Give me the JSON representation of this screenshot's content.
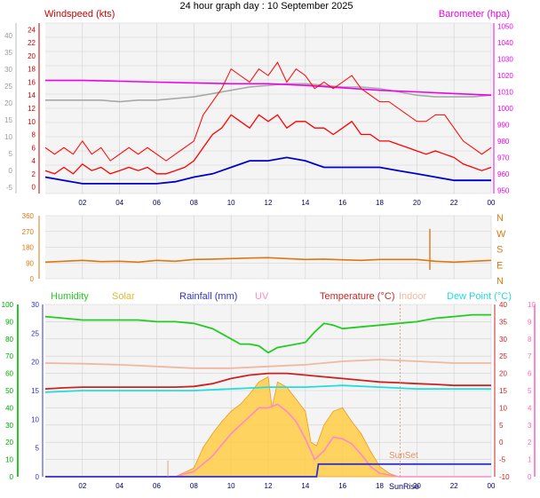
{
  "page_title": "24 hour graph day : 10 September 2025",
  "colors": {
    "plot_bg": "#f4f4f4",
    "grid": "#d0d0d0",
    "wind": "#ff0000",
    "gust_label": "#cc0000",
    "avg_wind": "#0000cc",
    "barometer": "#ee00ee",
    "bar_grey": "#a8a8a8",
    "direction": "#dd7711",
    "humidity": "#22cc22",
    "solar": "#ffcc44",
    "rain": "#3333cc",
    "uv": "#ff88cc",
    "temperature": "#cc2222",
    "indoor": "#f0b8a0",
    "dewpoint": "#22dddd",
    "x_ticks": "#000066",
    "green_axis": "#00aa00",
    "sunset": "#e09060"
  },
  "chart_data": [
    {
      "type": "line",
      "name": "wind-panel",
      "left_label": "Windspeed (kts)",
      "right_label": "Barometer (hpa)",
      "outer_axis_ticks": [
        "40",
        "35",
        "30",
        "25",
        "20",
        "15",
        "10",
        "5",
        "0",
        "-5"
      ],
      "wind_axis_ticks": [
        "24",
        "22",
        "20",
        "18",
        "16",
        "14",
        "12",
        "10",
        "8",
        "6",
        "4",
        "2",
        "0"
      ],
      "wind_ylim": [
        -1,
        25
      ],
      "baro_axis_ticks": [
        "1050",
        "1040",
        "1030",
        "1020",
        "1010",
        "1000",
        "990",
        "980",
        "970",
        "960",
        "950"
      ],
      "baro_ylim": [
        948,
        1052
      ],
      "x_ticks": [
        "02",
        "04",
        "06",
        "08",
        "10",
        "12",
        "14",
        "16",
        "18",
        "20",
        "22",
        "00"
      ],
      "xlim": [
        0,
        24
      ],
      "series": [
        {
          "key": "gust",
          "x": [
            0,
            0.5,
            1,
            1.5,
            2,
            2.5,
            3,
            3.5,
            4,
            4.5,
            5,
            5.5,
            6,
            6.5,
            7,
            7.5,
            8,
            8.5,
            9,
            9.5,
            10,
            10.5,
            11,
            11.5,
            12,
            12.5,
            13,
            13.5,
            14,
            14.5,
            15,
            15.5,
            16,
            16.5,
            17,
            17.5,
            18,
            18.5,
            19,
            19.5,
            20,
            20.5,
            21,
            21.5,
            22,
            22.5,
            23,
            23.5,
            24
          ],
          "y": [
            6,
            5,
            6,
            5,
            7,
            5,
            6,
            4,
            5,
            6,
            5,
            6,
            5,
            4,
            5,
            6,
            7,
            11,
            13,
            15,
            18,
            17,
            16,
            18,
            17,
            19,
            16,
            18,
            17,
            15,
            16,
            15,
            16,
            17,
            15,
            14,
            13,
            13,
            12,
            11,
            10,
            10,
            11,
            11,
            9,
            7,
            6,
            5,
            6
          ]
        },
        {
          "key": "wind",
          "x": [
            0,
            0.5,
            1,
            1.5,
            2,
            2.5,
            3,
            3.5,
            4,
            4.5,
            5,
            5.5,
            6,
            6.5,
            7,
            7.5,
            8,
            8.5,
            9,
            9.5,
            10,
            10.5,
            11,
            11.5,
            12,
            12.5,
            13,
            13.5,
            14,
            14.5,
            15,
            15.5,
            16,
            16.5,
            17,
            17.5,
            18,
            18.5,
            19,
            19.5,
            20,
            20.5,
            21,
            21.5,
            22,
            22.5,
            23,
            23.5,
            24
          ],
          "y": [
            2.5,
            2,
            3,
            2,
            3.5,
            2.5,
            3,
            2,
            2.5,
            3,
            2.5,
            3,
            2,
            2,
            2.5,
            3,
            4,
            6,
            8,
            9,
            11,
            10,
            9,
            11,
            10,
            11,
            9,
            10,
            10,
            9,
            9,
            8,
            9,
            10,
            8,
            8,
            7,
            7,
            6.5,
            6,
            5.5,
            5,
            5.5,
            5,
            4.5,
            3.5,
            3,
            2.5,
            3
          ]
        },
        {
          "key": "avg_wind",
          "x": [
            0,
            1,
            2,
            3,
            4,
            5,
            6,
            7,
            8,
            9,
            10,
            11,
            12,
            13,
            14,
            15,
            16,
            17,
            18,
            19,
            20,
            21,
            22,
            23,
            24
          ],
          "y": [
            1.5,
            1,
            0.5,
            0.5,
            0.5,
            0.5,
            0.5,
            0.8,
            1.5,
            2,
            3,
            4,
            4,
            4.5,
            4,
            3,
            3,
            3,
            3,
            2.5,
            2,
            1.5,
            1,
            1,
            1
          ]
        },
        {
          "key": "barometer",
          "x": [
            0,
            2,
            4,
            6,
            8,
            10,
            12,
            14,
            16,
            18,
            20,
            22,
            24
          ],
          "y": [
            1017,
            1017,
            1016.5,
            1016,
            1015.5,
            1015,
            1015,
            1014,
            1012.5,
            1011,
            1010,
            1009,
            1008
          ]
        },
        {
          "key": "barometer_prev",
          "x": [
            0,
            2,
            3,
            4,
            5,
            6,
            7,
            8,
            9,
            10,
            11,
            12,
            13,
            14,
            15,
            16,
            17,
            18,
            19,
            20,
            21,
            22,
            23,
            24
          ],
          "y": [
            1005,
            1005,
            1005,
            1004,
            1005,
            1005,
            1006,
            1007,
            1009,
            1011,
            1013,
            1014,
            1015,
            1015,
            1014,
            1013,
            1013,
            1012,
            1010,
            1008,
            1007,
            1007,
            1007,
            1008
          ]
        }
      ]
    },
    {
      "type": "line",
      "name": "direction-panel",
      "left_ticks": [
        "360",
        "270",
        "180",
        "90",
        "0"
      ],
      "ylim": [
        0,
        360
      ],
      "compass_ticks": [
        "N",
        "W",
        "S",
        "E",
        "N"
      ],
      "x": [
        0,
        1,
        2,
        3,
        4,
        5,
        6,
        7,
        8,
        9,
        10,
        11,
        12,
        13,
        14,
        15,
        16,
        17,
        18,
        19,
        20,
        21,
        22,
        23,
        24
      ],
      "series": [
        {
          "key": "direction",
          "y": [
            95,
            100,
            105,
            98,
            100,
            95,
            105,
            100,
            110,
            112,
            115,
            118,
            120,
            115,
            110,
            112,
            108,
            105,
            110,
            110,
            110,
            100,
            95,
            100,
            105
          ]
        }
      ],
      "annotations": [
        {
          "x": 20.7,
          "y": 285
        }
      ]
    },
    {
      "type": "area",
      "name": "combined-panel",
      "legend": [
        "Humidity",
        "Solar",
        "Rainfall (mm)",
        "UV",
        "Temperature (°C)",
        "Indoor",
        "Dew Point (°C)"
      ],
      "humidity_ticks": [
        "100",
        "90",
        "80",
        "70",
        "60",
        "50",
        "40",
        "30",
        "20",
        "10",
        "0"
      ],
      "humidity_ylim": [
        0,
        100
      ],
      "rain_ticks": [
        "30",
        "25",
        "20",
        "15",
        "10",
        "5",
        "0"
      ],
      "rain_ylim": [
        0,
        30
      ],
      "temp_ticks": [
        "40",
        "35",
        "30",
        "25",
        "20",
        "15",
        "10",
        "5",
        "0",
        "-5",
        "-10"
      ],
      "temp_ylim": [
        -10,
        40
      ],
      "uv_ticks": [
        "10",
        "9",
        "8",
        "7",
        "6",
        "5",
        "4",
        "3",
        "2",
        "1",
        "0"
      ],
      "uv_ylim": [
        0,
        10
      ],
      "x_ticks": [
        "02",
        "04",
        "06",
        "08",
        "10",
        "12",
        "14",
        "16",
        "18",
        "20",
        "22",
        "00"
      ],
      "xlim": [
        0,
        24
      ],
      "sunset_label": "SunSet",
      "sunrise_label": "SunRise",
      "sunset_x": 19.1,
      "sunrise_x": 6.6,
      "series": [
        {
          "key": "humidity",
          "x": [
            0,
            1,
            2,
            3,
            4,
            5,
            6,
            7,
            8,
            9,
            10,
            10.5,
            11,
            11.5,
            12,
            12.5,
            13,
            14,
            14.5,
            15,
            15.5,
            16,
            17,
            18,
            19,
            20,
            21,
            22,
            23,
            24
          ],
          "y": [
            93,
            92,
            91,
            91,
            91,
            91,
            90,
            90,
            89,
            86,
            80,
            77,
            77,
            76,
            72,
            75,
            76,
            78,
            84,
            89,
            88,
            86,
            87,
            88,
            89,
            90,
            92,
            93,
            94,
            94
          ]
        },
        {
          "key": "solar",
          "x": [
            0,
            6.5,
            7,
            8,
            8.5,
            9,
            9.5,
            10,
            10.5,
            11,
            11.5,
            12,
            12.2,
            12.5,
            13,
            13.5,
            14,
            14.3,
            14.6,
            15,
            15.5,
            16,
            16.5,
            17,
            17.5,
            18,
            18.5,
            19,
            24
          ],
          "y": [
            0,
            0,
            0,
            5,
            17,
            25,
            32,
            38,
            42,
            48,
            55,
            58,
            40,
            55,
            52,
            45,
            38,
            20,
            18,
            30,
            38,
            40,
            32,
            25,
            15,
            6,
            2,
            0,
            0
          ]
        },
        {
          "key": "uv",
          "x": [
            0,
            7,
            8,
            9,
            10,
            11,
            11.5,
            12,
            12.5,
            13,
            13.5,
            14,
            14.5,
            15,
            15.5,
            16,
            16.5,
            17,
            17.5,
            18,
            19,
            24
          ],
          "y": [
            0,
            0,
            0.3,
            1.2,
            2.5,
            3.5,
            4,
            4,
            4.2,
            3.8,
            3.2,
            2.2,
            1,
            1.5,
            2.3,
            2.2,
            1.9,
            1.3,
            0.6,
            0.2,
            0,
            0
          ]
        },
        {
          "key": "rain",
          "x": [
            0,
            14.6,
            14.7,
            24
          ],
          "y": [
            0,
            0,
            2.2,
            2.2
          ]
        },
        {
          "key": "temperature",
          "x": [
            0,
            1,
            2,
            3,
            4,
            5,
            6,
            7,
            8,
            9,
            10,
            11,
            12,
            13,
            14,
            15,
            16,
            17,
            18,
            19,
            20,
            21,
            22,
            23,
            24
          ],
          "y": [
            15.5,
            15.8,
            16,
            16,
            16,
            16,
            16,
            16,
            16.2,
            17,
            18.5,
            19.5,
            20,
            20,
            19.5,
            19,
            18.5,
            18,
            17.5,
            17.3,
            17,
            16.8,
            16.5,
            16.5,
            16.5
          ]
        },
        {
          "key": "indoor",
          "x": [
            0,
            2,
            4,
            6,
            8,
            10,
            12,
            14,
            16,
            18,
            20,
            22,
            24
          ],
          "y": [
            23,
            22.8,
            22.5,
            22,
            21.5,
            21.5,
            22,
            22.5,
            23.5,
            24,
            23.5,
            23,
            23
          ]
        },
        {
          "key": "dewpoint",
          "x": [
            0,
            2,
            4,
            6,
            8,
            10,
            12,
            14,
            16,
            18,
            20,
            22,
            24
          ],
          "y": [
            14.5,
            15,
            15,
            15,
            15,
            15.5,
            16,
            16,
            16.5,
            16,
            15.5,
            15.5,
            15.5
          ]
        }
      ]
    }
  ]
}
